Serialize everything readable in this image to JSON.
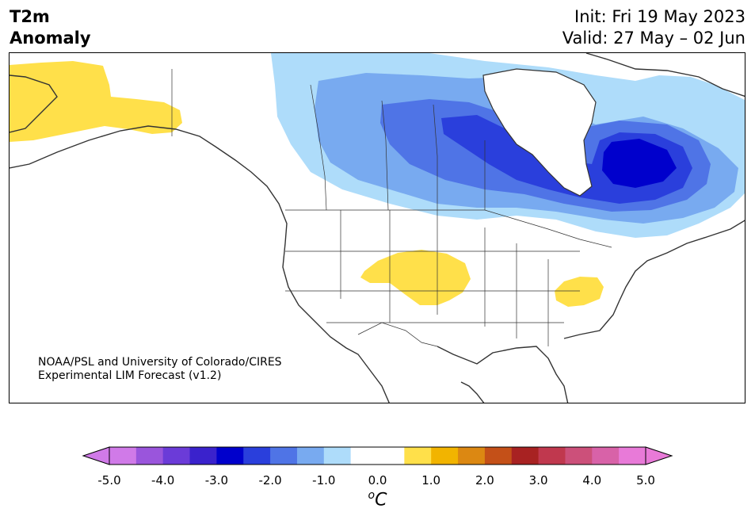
{
  "header": {
    "title_line1": "T2m",
    "title_line2": "Anomaly",
    "init": "Init: Fri 19 May 2023",
    "valid": "Valid: 27 May – 02 Jun"
  },
  "credit": {
    "line1": "NOAA/PSL and University of Colorado/CIRES",
    "line2": "Experimental LIM Forecast (v1.2)"
  },
  "colorbar": {
    "ticks": [
      "-5.0",
      "-4.0",
      "-3.0",
      "-2.0",
      "-1.0",
      "0.0",
      "1.0",
      "2.0",
      "3.0",
      "4.0",
      "5.0"
    ],
    "unit_base": "C",
    "unit_super": "o",
    "colors": [
      "#d07ae8",
      "#9a55dc",
      "#6b3bd8",
      "#3a22cc",
      "#0000cc",
      "#2a3fdc",
      "#4f74e6",
      "#78aaf0",
      "#aedcfa",
      "#ffffff",
      "#ffffff",
      "#ffe04a",
      "#f2b400",
      "#dc8812",
      "#c45018",
      "#a82222",
      "#c0384e",
      "#cc507a",
      "#d862a8",
      "#e87ad8"
    ],
    "under_color": "#d07ae8",
    "over_color": "#e87ad8"
  },
  "map": {
    "anomaly_colors": {
      "light_blue": "#aedcfa",
      "mid_blue": "#78aaf0",
      "blue": "#4f74e6",
      "dark_blue": "#2a3fdc",
      "deep_blue": "#0000cc",
      "warm": "#ffe04a"
    }
  }
}
